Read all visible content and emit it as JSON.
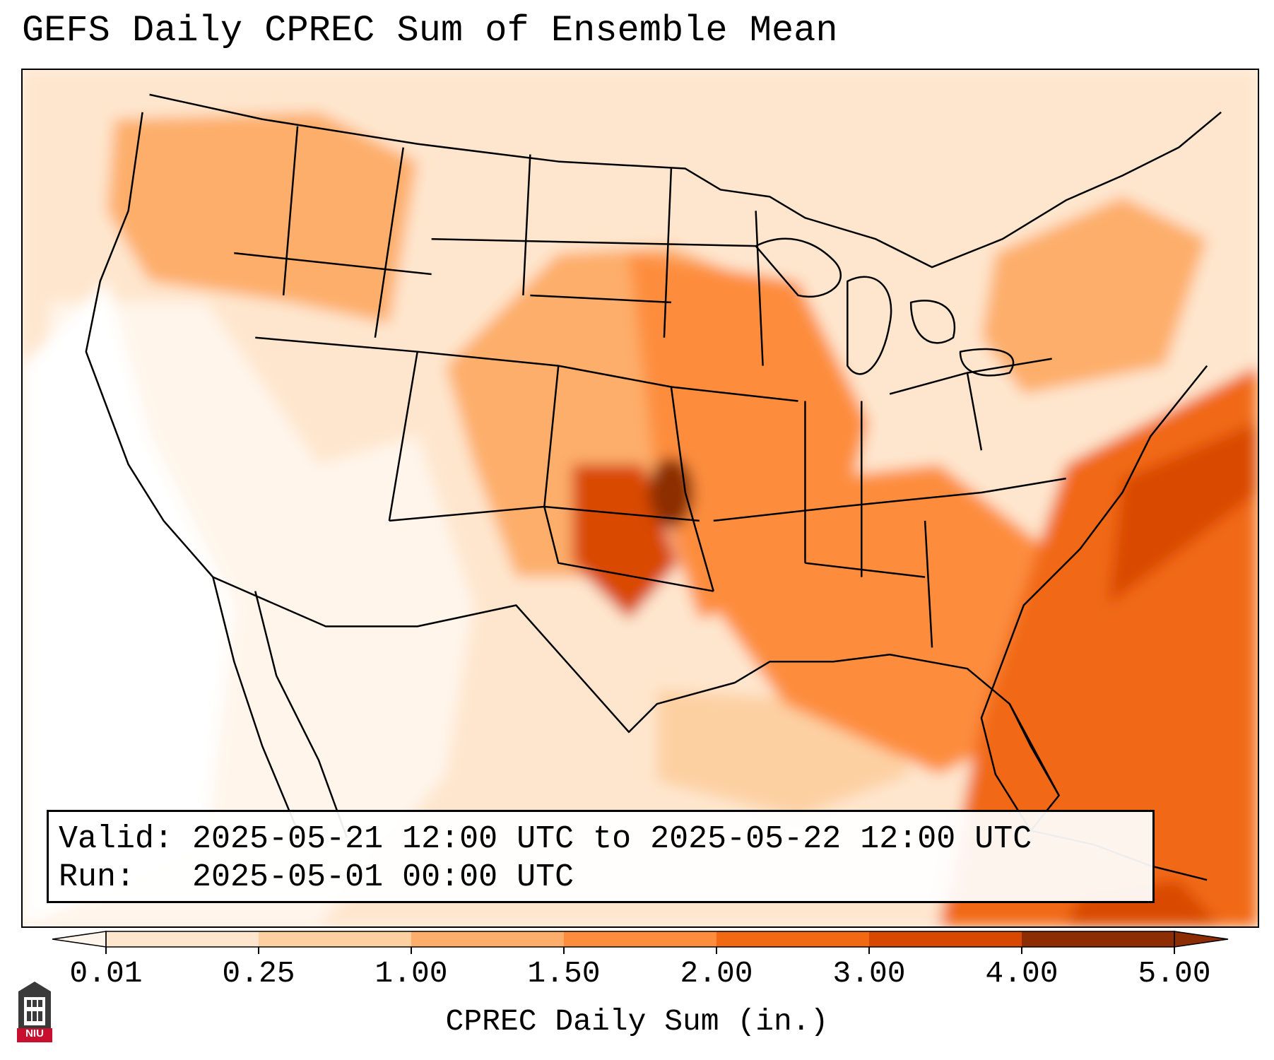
{
  "title": "GEFS Daily CPREC Sum of Ensemble Mean",
  "info": {
    "valid_label": "Valid:",
    "valid_value": "2025-05-21 12:00 UTC to 2025-05-22 12:00 UTC",
    "run_label": "Run:",
    "run_value": "2025-05-01 00:00 UTC"
  },
  "colorbar": {
    "label": "CPREC Daily Sum (in.)",
    "ticks": [
      "0.01",
      "0.25",
      "1.00",
      "1.50",
      "2.00",
      "3.00",
      "4.00",
      "5.00"
    ],
    "colors": [
      "#fff5eb",
      "#fee6ce",
      "#fdd0a2",
      "#fdae6b",
      "#fd8d3c",
      "#f16913",
      "#d94801",
      "#8c2d04"
    ],
    "extend": "both"
  },
  "logo": {
    "text": "NIU",
    "icon": "niu-building-icon",
    "color": "#c8102e"
  }
}
